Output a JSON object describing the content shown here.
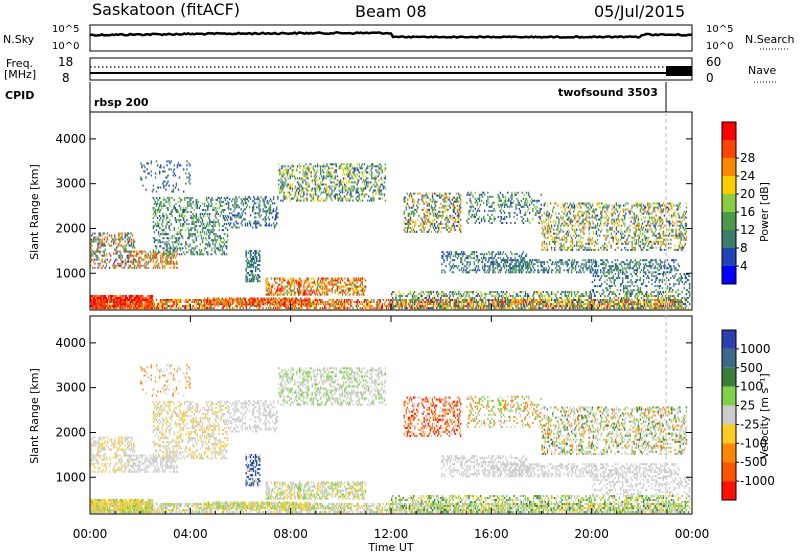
{
  "header": {
    "title": "Saskatoon (fitACF)",
    "beam": "Beam 08",
    "date": "05/Jul/2015"
  },
  "top_panels": {
    "nsky_label": "N.Sky",
    "nsky_top": "10^5",
    "nsky_bottom": "10^0",
    "nsearch_label": "N.Search",
    "nsearch_top": "10^5",
    "nsearch_bottom": "10^0",
    "freq_label": "Freq.",
    "freq_unit": "[MHz]",
    "freq_top": "18",
    "freq_bottom": "8",
    "nave_label": "Nave",
    "nave_top": "60",
    "nave_bottom": "0",
    "cpid_label": "CPID",
    "cpid_1": "rbsp 200",
    "cpid_2": "twofsound 3503"
  },
  "chart_data": [
    {
      "type": "heatmap",
      "panel": "power",
      "ylabel": "Slant Range [km]",
      "ylim": [
        180,
        4600
      ],
      "yticks": [
        "1000",
        "2000",
        "3000",
        "4000"
      ],
      "colorbar_label": "Power [dB]",
      "colorbar_ticks": [
        "4",
        "8",
        "12",
        "16",
        "20",
        "24",
        "28"
      ],
      "colors": [
        "#0000ff",
        "#2244bb",
        "#3a7e6a",
        "#4a9a4a",
        "#88cc44",
        "#ffcc00",
        "#ff8800",
        "#ff4400",
        "#ff0000"
      ]
    },
    {
      "type": "heatmap",
      "panel": "velocity",
      "ylabel": "Slant Range [km]",
      "ylim": [
        180,
        4600
      ],
      "yticks": [
        "1000",
        "2000",
        "3000",
        "4000"
      ],
      "xlabel": "Time UT",
      "xticks": [
        "00:00",
        "04:00",
        "08:00",
        "12:00",
        "16:00",
        "20:00",
        "00:00"
      ],
      "xlim_hours": [
        0,
        24
      ],
      "colorbar_label": "Velocity [m s⁻¹]",
      "colorbar_ticks": [
        "1000",
        "500",
        "100",
        "25",
        "-25",
        "-100",
        "-500",
        "-1000"
      ],
      "colors": [
        "#2a3fb0",
        "#3d6a8a",
        "#3a7e3a",
        "#7fd04a",
        "#cccccc",
        "#ffcc22",
        "#ff8800",
        "#ff5500",
        "#ff1100"
      ]
    }
  ]
}
